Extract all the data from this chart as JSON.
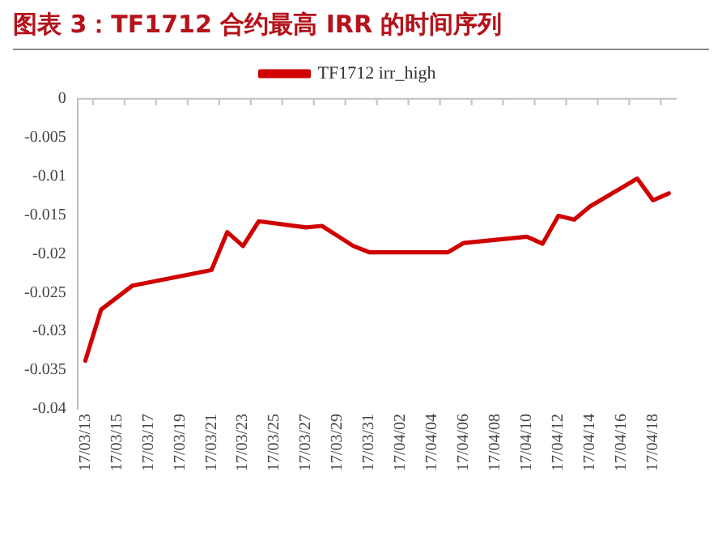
{
  "chart_data": {
    "type": "line",
    "title": "图表 3：TF1712 合约最高 IRR 的时间序列",
    "x": [
      "--03-13",
      "--03-14",
      "--03-16",
      "--03-21",
      "--03-22",
      "--03-23",
      "--03-24",
      "--03-27",
      "--03-28",
      "--03-29",
      "--03-30",
      "--03-31",
      "--04-05",
      "--04-06",
      "--04-10",
      "--04-11",
      "--04-12",
      "--04-13",
      "--04-14",
      "--04-17",
      "--04-18",
      "--04-19"
    ],
    "series": [
      {
        "name": "TF1712 irr_high",
        "color": "#d00000",
        "values": [
          -0.0338,
          -0.0272,
          -0.0241,
          -0.0221,
          -0.0172,
          -0.019,
          -0.0158,
          -0.0166,
          -0.0164,
          -0.0177,
          -0.019,
          -0.0198,
          -0.0198,
          -0.0186,
          -0.0178,
          -0.0187,
          -0.0151,
          -0.0156,
          -0.0139,
          -0.0103,
          -0.0131,
          -0.0122
        ]
      }
    ],
    "xlim": [
      "--03-12T12:00",
      "--04-19T12:00"
    ],
    "xticks": [
      {
        "value": "--03-13",
        "label": "17/03/13"
      },
      {
        "value": "--03-15",
        "label": "17/03/15"
      },
      {
        "value": "--03-17",
        "label": "17/03/17"
      },
      {
        "value": "--03-19",
        "label": "17/03/19"
      },
      {
        "value": "--03-21",
        "label": "17/03/21"
      },
      {
        "value": "--03-23",
        "label": "17/03/23"
      },
      {
        "value": "--03-25",
        "label": "17/03/25"
      },
      {
        "value": "--03-27",
        "label": "17/03/27"
      },
      {
        "value": "--03-29",
        "label": "17/03/29"
      },
      {
        "value": "--03-31",
        "label": "17/03/31"
      },
      {
        "value": "--04-02",
        "label": "17/04/02"
      },
      {
        "value": "--04-04",
        "label": "17/04/04"
      },
      {
        "value": "--04-06",
        "label": "17/04/06"
      },
      {
        "value": "--04-08",
        "label": "17/04/08"
      },
      {
        "value": "--04-10",
        "label": "17/04/10"
      },
      {
        "value": "--04-12",
        "label": "17/04/12"
      },
      {
        "value": "--04-14",
        "label": "17/04/14"
      },
      {
        "value": "--04-16",
        "label": "17/04/16"
      },
      {
        "value": "--04-18",
        "label": "17/04/18"
      }
    ],
    "ylim": [
      -0.04,
      0
    ],
    "yticks": [
      -0.04,
      -0.035,
      -0.03,
      -0.025,
      -0.02,
      -0.015,
      -0.01,
      -0.005,
      0
    ],
    "grid": false,
    "legend": "top",
    "marker": "none",
    "line_style": "solid"
  }
}
